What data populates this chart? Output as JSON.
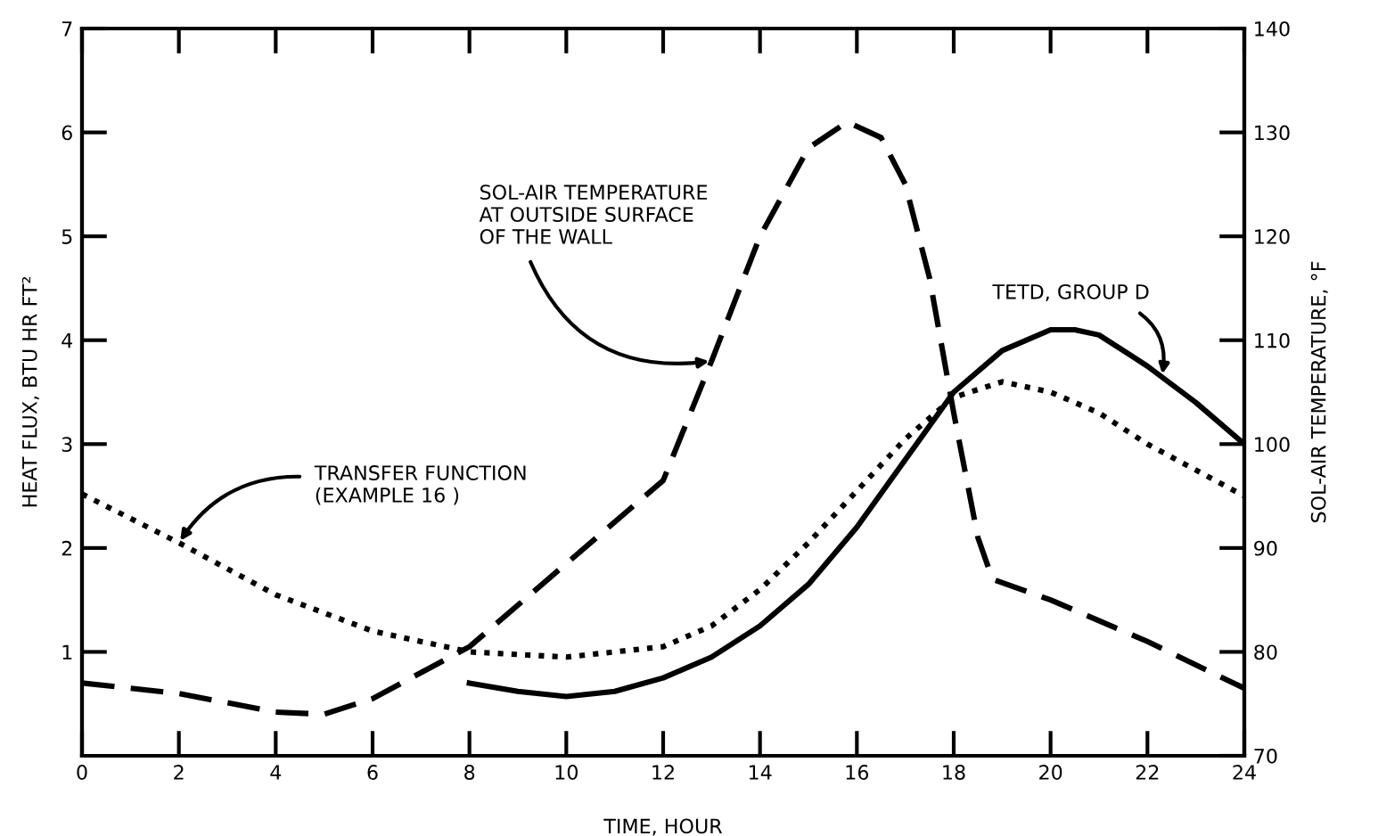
{
  "chart_data": {
    "type": "line",
    "xlabel": "TIME, HOUR",
    "ylabel": "HEAT FLUX, BTU HR FT²",
    "y2label": "SOL-AIR TEMPERATURE, °F",
    "xlim": [
      0,
      24
    ],
    "xticks": [
      0,
      2,
      4,
      6,
      8,
      10,
      12,
      14,
      16,
      18,
      20,
      22,
      24
    ],
    "ylim": [
      0,
      7
    ],
    "yticks": [
      1,
      2,
      3,
      4,
      5,
      6,
      7
    ],
    "y2lim": [
      70,
      140
    ],
    "y2ticks": [
      70,
      80,
      90,
      100,
      110,
      120,
      130,
      140
    ],
    "grid": false,
    "legend": false,
    "series": [
      {
        "color": "#000000",
        "line_style": "dashed",
        "axis": "y2",
        "x": [
          0,
          2,
          4,
          5,
          6,
          8,
          10,
          12,
          13,
          14,
          15,
          15.8,
          16.5,
          17,
          17.5,
          18,
          18.5,
          18.8,
          20,
          22,
          24
        ],
        "values": [
          77,
          76,
          74.2,
          74,
          75.5,
          80.5,
          88.5,
          96.5,
          108,
          120,
          128.5,
          131,
          129.5,
          125,
          116,
          103,
          91,
          87,
          85,
          81,
          76.5
        ]
      },
      {
        "color": "#000000",
        "line_style": "solid",
        "x": [
          8,
          9,
          10,
          11,
          12,
          13,
          14,
          15,
          16,
          17,
          18,
          19,
          20,
          20.5,
          21,
          22,
          23,
          24
        ],
        "values": [
          0.7,
          0.62,
          0.57,
          0.62,
          0.75,
          0.95,
          1.25,
          1.65,
          2.2,
          2.85,
          3.5,
          3.9,
          4.1,
          4.1,
          4.05,
          3.75,
          3.4,
          3.0
        ]
      },
      {
        "color": "#000000",
        "line_style": "dotted",
        "x": [
          0,
          2,
          4,
          6,
          8,
          10,
          12,
          13,
          14,
          15,
          16,
          17,
          18,
          19,
          20,
          21,
          22,
          23,
          24
        ],
        "values": [
          2.52,
          2.05,
          1.55,
          1.2,
          1.0,
          0.95,
          1.05,
          1.25,
          1.6,
          2.05,
          2.55,
          3.05,
          3.45,
          3.6,
          3.5,
          3.3,
          3.0,
          2.75,
          2.5
        ]
      }
    ],
    "annotations": [
      {
        "text": "SOL-AIR TEMPERATURE\nAT OUTSIDE SURFACE\nOF THE WALL",
        "x": 13,
        "y": 3.8
      },
      {
        "text": "TRANSFER FUNCTION\n(EXAMPLE 16 )",
        "x": 2,
        "y": 2.05
      },
      {
        "text": "TETD, GROUP D",
        "x": 22.3,
        "y": 3.65
      }
    ]
  }
}
